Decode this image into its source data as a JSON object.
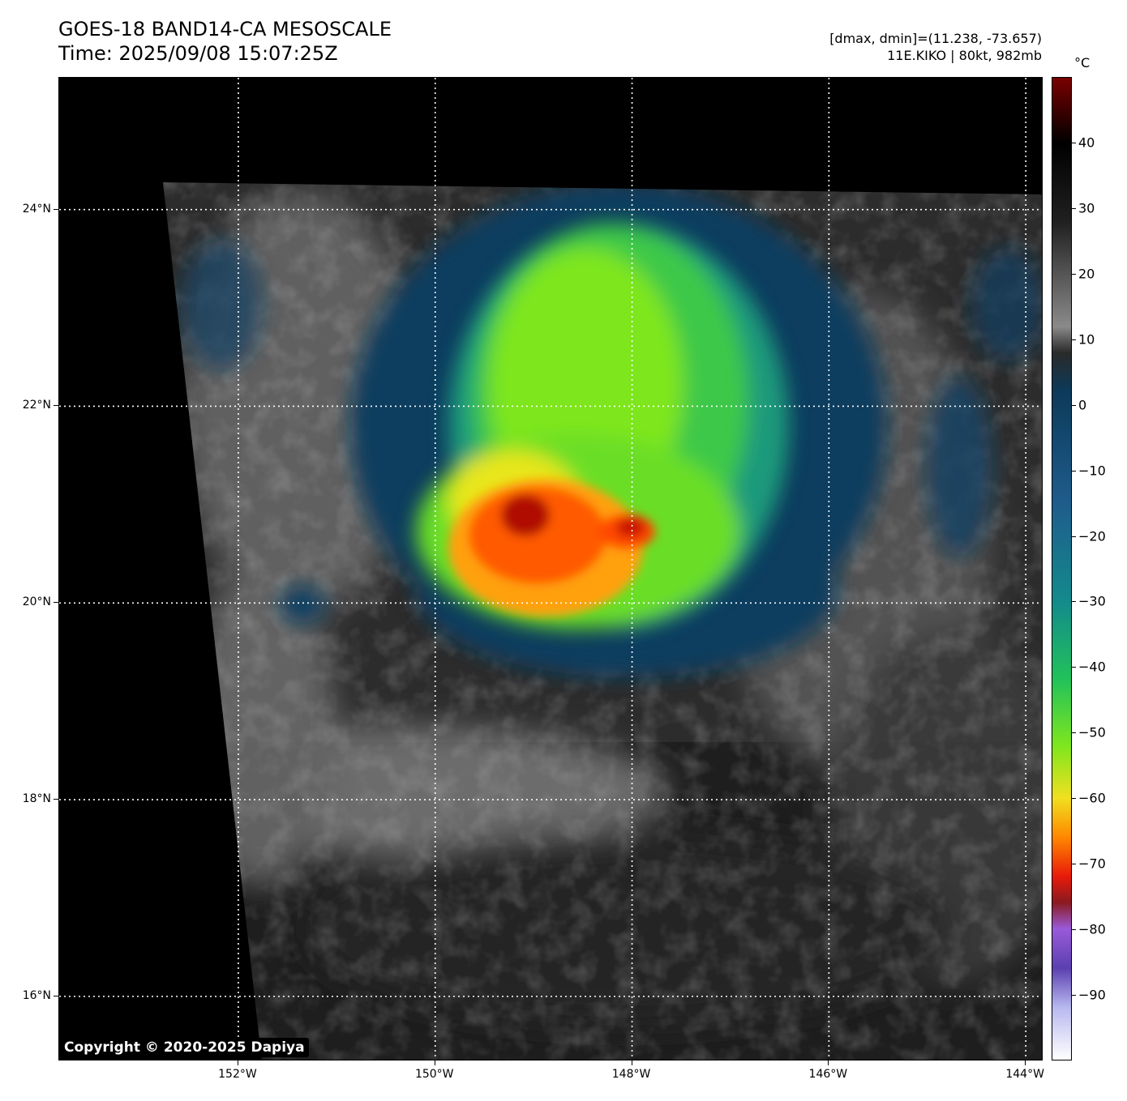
{
  "header": {
    "title_line1": "GOES-18 BAND14-CA MESOSCALE",
    "title_line2": "Time: 2025/09/08 15:07:25Z",
    "info_line1": "[dmax, dmin]=(11.238, -73.657)",
    "info_line2": "11E.KIKO | 80kt, 982mb"
  },
  "map": {
    "lon_ticks": [
      {
        "value": -152,
        "label": "152°W"
      },
      {
        "value": -150,
        "label": "150°W"
      },
      {
        "value": -148,
        "label": "148°W"
      },
      {
        "value": -146,
        "label": "146°W"
      },
      {
        "value": -144,
        "label": "144°W"
      }
    ],
    "lat_ticks": [
      {
        "value": 24,
        "label": "24°N"
      },
      {
        "value": 22,
        "label": "22°N"
      },
      {
        "value": 20,
        "label": "20°N"
      },
      {
        "value": 18,
        "label": "18°N"
      },
      {
        "value": 16,
        "label": "16°N"
      }
    ],
    "lon_range": [
      -153.82,
      -143.82
    ],
    "lat_range": [
      15.34,
      25.34
    ],
    "grid": "dotted white",
    "storm_center": {
      "lon": -148.9,
      "lat": 20.9
    }
  },
  "colorbar": {
    "unit": "°C",
    "range": [
      -100,
      50
    ],
    "ticks": [
      {
        "value": 40,
        "label": "40"
      },
      {
        "value": 30,
        "label": "30"
      },
      {
        "value": 20,
        "label": "20"
      },
      {
        "value": 10,
        "label": "10"
      },
      {
        "value": 0,
        "label": "0"
      },
      {
        "value": -10,
        "label": "−10"
      },
      {
        "value": -20,
        "label": "−20"
      },
      {
        "value": -30,
        "label": "−30"
      },
      {
        "value": -40,
        "label": "−40"
      },
      {
        "value": -50,
        "label": "−50"
      },
      {
        "value": -60,
        "label": "−60"
      },
      {
        "value": -70,
        "label": "−70"
      },
      {
        "value": -80,
        "label": "−80"
      },
      {
        "value": -90,
        "label": "−90"
      }
    ],
    "colors": {
      "warm_dark_red": "#7a0000",
      "black": "#000000",
      "gray": "#8a8a8a",
      "dark_blue": "#0c3a5a",
      "blue": "#1f5c8c",
      "teal": "#138a8c",
      "green": "#22c25a",
      "lime": "#7ee61e",
      "yellow": "#f0e020",
      "orange": "#ff8800",
      "red": "#e81a0a",
      "purple": "#9a5ad8",
      "white": "#ffffff"
    }
  },
  "footer": {
    "copyright": "Copyright © 2020-2025 Dapiya"
  }
}
